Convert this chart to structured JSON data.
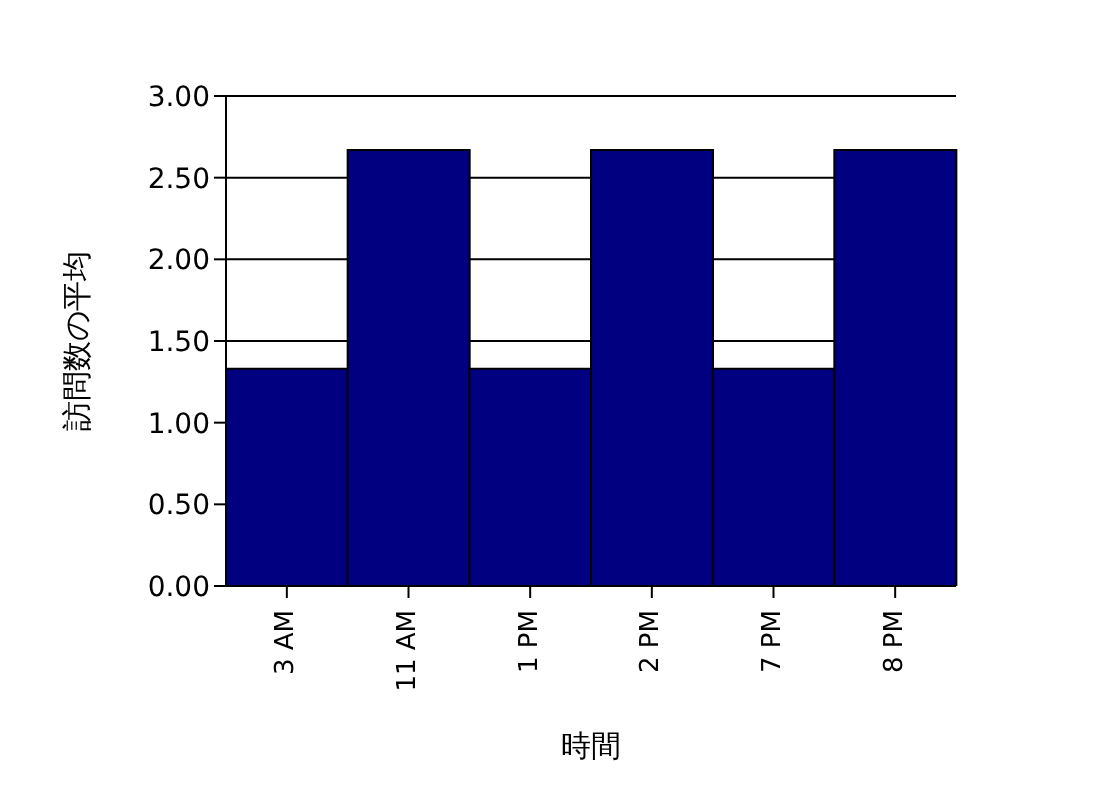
{
  "chart_data": {
    "type": "bar",
    "xlabel": "時間",
    "ylabel": "訪問数の平均",
    "categories": [
      "3 AM",
      "11 AM",
      "1 PM",
      "2 PM",
      "7 PM",
      "8 PM"
    ],
    "series": [
      {
        "color": "#000080",
        "values": [
          1.33,
          2.67,
          1.33,
          2.67,
          1.33,
          2.67
        ]
      }
    ],
    "ylim": [
      0,
      3
    ],
    "yticks": [
      {
        "value": 0,
        "label": "0.00"
      },
      {
        "value": 0.5,
        "label": "0.50"
      },
      {
        "value": 1,
        "label": "1.00"
      },
      {
        "value": 1.5,
        "label": "1.50"
      },
      {
        "value": 2,
        "label": "2.00"
      },
      {
        "value": 2.5,
        "label": "2.50"
      },
      {
        "value": 3,
        "label": "3.00"
      }
    ],
    "grid": "y",
    "legend": false
  }
}
